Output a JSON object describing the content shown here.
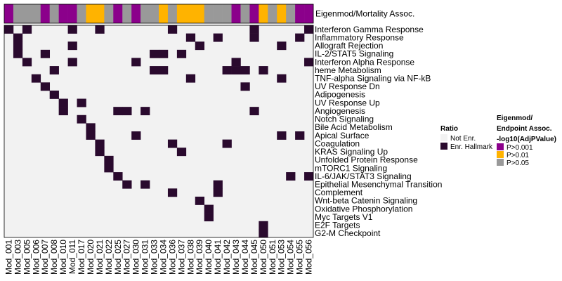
{
  "chart_data": {
    "type": "heatmap",
    "title": "",
    "columns": [
      "Mod_001",
      "Mod_003",
      "Mod_005",
      "Mod_006",
      "Mod_007",
      "Mod_008",
      "Mod_010",
      "Mod_011",
      "Mod_017",
      "Mod_020",
      "Mod_021",
      "Mod_022",
      "Mod_025",
      "Mod_027",
      "Mod_030",
      "Mod_031",
      "Mod_033",
      "Mod_034",
      "Mod_036",
      "Mod_037",
      "Mod_038",
      "Mod_039",
      "Mod_040",
      "Mod_041",
      "Mod_042",
      "Mod_043",
      "Mod_044",
      "Mod_045",
      "Mod_050",
      "Mod_051",
      "Mod_053",
      "Mod_054",
      "Mod_055",
      "Mod_056"
    ],
    "rows": [
      "Interferon Gamma Response",
      "Inflammatory Response",
      "Allograft Rejection",
      "IL-2/STAT5 Signaling",
      "Interferon Alpha Response",
      "heme Metabolism",
      "TNF-alpha Signaling via NF-kB",
      "UV Response Dn",
      "Adipogenesis",
      "UV Response Up",
      "Angiogenesis",
      "Notch Signaling",
      "Bile Acid Metabolism",
      "Apical Surface",
      "Coagulation",
      "KRAS Signaling Up",
      "Unfolded Protein Response",
      "mTORC1 Signaling",
      "IL-6/JAK/STAT3 Signaling",
      "Epithelial Mesenchymal Transition",
      "Complement",
      "Wnt-beta Catenin Signaling",
      "Oxidative Phosphorylation",
      "Myc Targets V1",
      "E2F Targets",
      "G2-M Checkpoint"
    ],
    "values": [
      [
        1,
        0,
        1,
        0,
        0,
        0,
        0,
        1,
        0,
        0,
        1,
        0,
        0,
        0,
        0,
        0,
        0,
        0,
        1,
        0,
        0,
        0,
        0,
        0,
        0,
        0,
        0,
        1,
        0,
        0,
        0,
        0,
        0,
        1
      ],
      [
        0,
        1,
        0,
        0,
        0,
        0,
        0,
        0,
        0,
        0,
        0,
        0,
        0,
        0,
        0,
        0,
        0,
        0,
        0,
        0,
        1,
        0,
        0,
        1,
        0,
        0,
        0,
        1,
        0,
        0,
        0,
        0,
        1,
        0
      ],
      [
        0,
        1,
        0,
        0,
        0,
        0,
        0,
        1,
        0,
        0,
        0,
        0,
        0,
        0,
        0,
        0,
        0,
        0,
        0,
        0,
        0,
        1,
        0,
        0,
        0,
        0,
        0,
        0,
        0,
        0,
        1,
        0,
        0,
        0
      ],
      [
        0,
        1,
        0,
        0,
        1,
        0,
        0,
        0,
        0,
        0,
        0,
        0,
        0,
        0,
        0,
        0,
        1,
        1,
        0,
        1,
        0,
        0,
        0,
        0,
        0,
        0,
        0,
        0,
        0,
        0,
        0,
        0,
        0,
        0
      ],
      [
        0,
        0,
        1,
        0,
        0,
        0,
        0,
        1,
        0,
        0,
        0,
        0,
        0,
        0,
        1,
        0,
        0,
        0,
        0,
        0,
        0,
        0,
        0,
        0,
        0,
        1,
        0,
        0,
        0,
        0,
        0,
        0,
        0,
        1
      ],
      [
        0,
        0,
        0,
        0,
        0,
        1,
        0,
        0,
        0,
        0,
        0,
        0,
        0,
        0,
        0,
        0,
        1,
        1,
        0,
        0,
        0,
        0,
        0,
        0,
        1,
        1,
        1,
        0,
        1,
        0,
        0,
        0,
        0,
        0
      ],
      [
        0,
        0,
        0,
        1,
        0,
        0,
        0,
        0,
        0,
        0,
        0,
        0,
        0,
        0,
        0,
        0,
        0,
        0,
        0,
        0,
        1,
        0,
        0,
        0,
        0,
        0,
        0,
        0,
        0,
        0,
        1,
        0,
        0,
        0
      ],
      [
        0,
        0,
        0,
        0,
        1,
        0,
        0,
        0,
        0,
        0,
        0,
        0,
        0,
        0,
        0,
        0,
        0,
        0,
        0,
        0,
        0,
        0,
        0,
        0,
        0,
        0,
        1,
        0,
        0,
        0,
        0,
        0,
        0,
        0
      ],
      [
        0,
        0,
        0,
        0,
        0,
        1,
        0,
        0,
        0,
        0,
        0,
        0,
        0,
        0,
        0,
        0,
        0,
        0,
        0,
        0,
        0,
        0,
        0,
        0,
        0,
        0,
        0,
        0,
        0,
        0,
        0,
        0,
        0,
        0
      ],
      [
        0,
        0,
        0,
        0,
        0,
        0,
        1,
        0,
        1,
        0,
        0,
        0,
        0,
        0,
        0,
        0,
        0,
        0,
        0,
        0,
        0,
        0,
        0,
        0,
        0,
        0,
        0,
        0,
        0,
        0,
        0,
        0,
        0,
        0
      ],
      [
        0,
        0,
        0,
        0,
        0,
        0,
        1,
        0,
        0,
        0,
        0,
        0,
        1,
        1,
        0,
        1,
        0,
        0,
        0,
        0,
        0,
        0,
        0,
        0,
        0,
        0,
        0,
        1,
        0,
        0,
        0,
        0,
        0,
        0
      ],
      [
        0,
        0,
        0,
        0,
        0,
        0,
        0,
        0,
        1,
        0,
        0,
        0,
        0,
        0,
        0,
        0,
        0,
        0,
        0,
        0,
        0,
        0,
        0,
        0,
        0,
        0,
        0,
        0,
        0,
        0,
        0,
        0,
        0,
        0
      ],
      [
        0,
        0,
        0,
        0,
        0,
        0,
        0,
        0,
        0,
        1,
        0,
        0,
        0,
        0,
        0,
        0,
        0,
        0,
        0,
        0,
        0,
        0,
        0,
        0,
        0,
        0,
        0,
        0,
        0,
        0,
        0,
        0,
        0,
        0
      ],
      [
        0,
        0,
        0,
        0,
        0,
        0,
        0,
        0,
        0,
        1,
        0,
        0,
        0,
        0,
        1,
        0,
        0,
        0,
        0,
        0,
        0,
        0,
        0,
        0,
        0,
        0,
        0,
        0,
        0,
        0,
        1,
        0,
        1,
        0
      ],
      [
        0,
        0,
        0,
        0,
        0,
        0,
        0,
        0,
        0,
        0,
        1,
        0,
        0,
        0,
        0,
        0,
        0,
        0,
        1,
        0,
        0,
        0,
        0,
        0,
        1,
        0,
        0,
        0,
        0,
        0,
        0,
        0,
        0,
        0
      ],
      [
        0,
        0,
        0,
        0,
        0,
        0,
        0,
        0,
        0,
        0,
        1,
        0,
        0,
        0,
        0,
        0,
        0,
        0,
        0,
        1,
        0,
        0,
        0,
        0,
        0,
        0,
        0,
        0,
        0,
        0,
        0,
        0,
        0,
        0
      ],
      [
        0,
        0,
        0,
        0,
        0,
        0,
        0,
        0,
        0,
        0,
        0,
        1,
        0,
        0,
        0,
        0,
        0,
        0,
        0,
        0,
        0,
        0,
        0,
        0,
        0,
        0,
        0,
        0,
        0,
        0,
        0,
        0,
        0,
        0
      ],
      [
        0,
        0,
        0,
        0,
        0,
        0,
        0,
        0,
        0,
        0,
        0,
        1,
        0,
        0,
        0,
        0,
        0,
        0,
        0,
        0,
        0,
        0,
        0,
        0,
        0,
        0,
        0,
        0,
        0,
        0,
        0,
        0,
        0,
        0
      ],
      [
        0,
        0,
        0,
        0,
        0,
        0,
        0,
        0,
        0,
        0,
        0,
        0,
        1,
        0,
        0,
        0,
        0,
        0,
        0,
        0,
        0,
        0,
        0,
        0,
        0,
        0,
        0,
        0,
        0,
        0,
        0,
        1,
        0,
        1
      ],
      [
        0,
        0,
        0,
        0,
        0,
        0,
        0,
        0,
        0,
        0,
        0,
        0,
        0,
        1,
        0,
        1,
        0,
        0,
        0,
        0,
        0,
        0,
        0,
        1,
        0,
        0,
        0,
        0,
        0,
        0,
        0,
        0,
        0,
        0
      ],
      [
        0,
        0,
        0,
        0,
        0,
        0,
        0,
        0,
        0,
        0,
        0,
        0,
        0,
        0,
        0,
        0,
        0,
        0,
        1,
        0,
        0,
        0,
        0,
        1,
        0,
        0,
        0,
        0,
        0,
        0,
        0,
        0,
        0,
        0
      ],
      [
        0,
        0,
        0,
        0,
        0,
        0,
        0,
        0,
        0,
        0,
        0,
        0,
        0,
        0,
        0,
        0,
        0,
        0,
        0,
        0,
        0,
        1,
        0,
        0,
        0,
        0,
        0,
        0,
        0,
        0,
        0,
        0,
        0,
        0
      ],
      [
        0,
        0,
        0,
        0,
        0,
        0,
        0,
        0,
        0,
        0,
        0,
        0,
        0,
        0,
        0,
        0,
        0,
        0,
        0,
        0,
        0,
        0,
        1,
        0,
        0,
        0,
        0,
        0,
        0,
        0,
        0,
        0,
        0,
        0
      ],
      [
        0,
        0,
        0,
        0,
        0,
        0,
        0,
        0,
        0,
        0,
        0,
        0,
        0,
        0,
        0,
        0,
        0,
        0,
        0,
        0,
        0,
        0,
        1,
        0,
        0,
        0,
        0,
        0,
        0,
        0,
        0,
        0,
        0,
        0
      ],
      [
        0,
        0,
        0,
        0,
        0,
        0,
        0,
        0,
        0,
        0,
        0,
        0,
        0,
        0,
        0,
        0,
        0,
        0,
        0,
        0,
        0,
        0,
        0,
        0,
        0,
        0,
        0,
        0,
        1,
        0,
        0,
        0,
        0,
        0
      ],
      [
        0,
        0,
        0,
        0,
        0,
        0,
        0,
        0,
        0,
        0,
        0,
        0,
        0,
        0,
        0,
        0,
        0,
        0,
        0,
        0,
        0,
        0,
        0,
        0,
        0,
        0,
        0,
        0,
        1,
        0,
        0,
        0,
        0,
        0
      ]
    ],
    "annotation": {
      "label": "Eigenmod/Mortality Assoc.",
      "values": [
        ">0.001",
        ">0.05",
        ">0.05",
        ">0.05",
        ">0.001",
        ">0.05",
        ">0.001",
        ">0.001",
        ">0.05",
        ">0.01",
        ">0.01",
        ">0.05",
        ">0.001",
        ">0.05",
        ">0.001",
        ">0.05",
        ">0.05",
        ">0.01",
        ">0.05",
        ">0.01",
        ">0.01",
        ">0.01",
        ">0.05",
        ">0.05",
        ">0.05",
        ">0.001",
        ">0.05",
        ">0.001",
        ">0.01",
        ">0.05",
        ">0.01",
        ">0.05",
        ">0.001",
        ">0.001"
      ]
    },
    "legend_ratio": {
      "title": "Ratio",
      "items": [
        {
          "label": "Not Enr.",
          "color": "#f2f2f2"
        },
        {
          "label": "Enr. Hallmark",
          "color": "#2a0a2e"
        }
      ]
    },
    "legend_annotation": {
      "title_lines": [
        "Eigenmod/",
        "Endpoint Assoc.",
        "-log10(AdjPValue)"
      ],
      "items": [
        {
          "key": ">0.001",
          "label": "P>0.001",
          "color": "#8b008b"
        },
        {
          "key": ">0.01",
          "label": "P>0.01",
          "color": "#ffb300"
        },
        {
          "key": ">0.05",
          "label": "P>0.05",
          "color": "#999999"
        }
      ]
    }
  }
}
